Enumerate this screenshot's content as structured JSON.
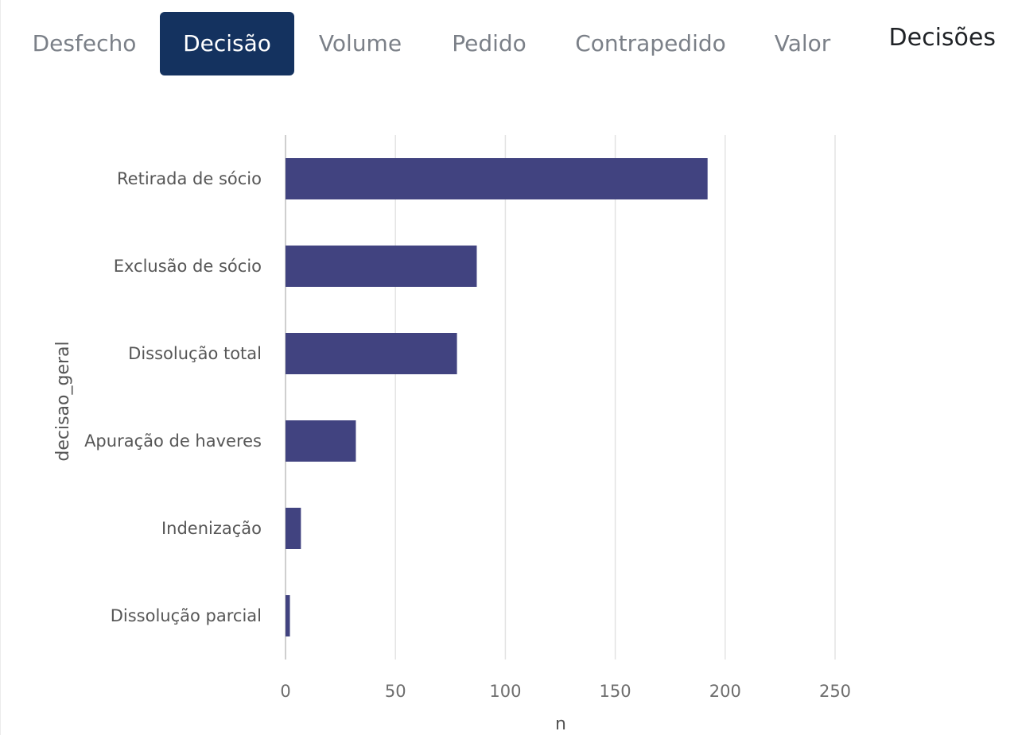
{
  "tabs": [
    {
      "key": "desfecho",
      "label": "Desfecho",
      "active": false
    },
    {
      "key": "decisao",
      "label": "Decisão",
      "active": true
    },
    {
      "key": "volume",
      "label": "Volume",
      "active": false
    },
    {
      "key": "pedido",
      "label": "Pedido",
      "active": false
    },
    {
      "key": "contrapedido",
      "label": "Contrapedido",
      "active": false
    },
    {
      "key": "valor",
      "label": "Valor",
      "active": false
    }
  ],
  "card_title": "Decisões",
  "colors": {
    "bar": "#414380",
    "active_tab": "#14325f",
    "gridline": "#e3e3e3",
    "axis_line": "#cfcfcf"
  },
  "chart_data": {
    "type": "bar",
    "orientation": "horizontal",
    "categories": [
      "Retirada de sócio",
      "Exclusão de sócio",
      "Dissolução total",
      "Apuração de haveres",
      "Indenização",
      "Dissolução parcial"
    ],
    "values": [
      192,
      87,
      78,
      32,
      7,
      2
    ],
    "xlabel": "n",
    "ylabel": "decisao_geral",
    "xlim": [
      0,
      250
    ],
    "xticks": [
      "0",
      "50",
      "100",
      "150",
      "200",
      "250"
    ],
    "grid": true,
    "legend": "none"
  }
}
